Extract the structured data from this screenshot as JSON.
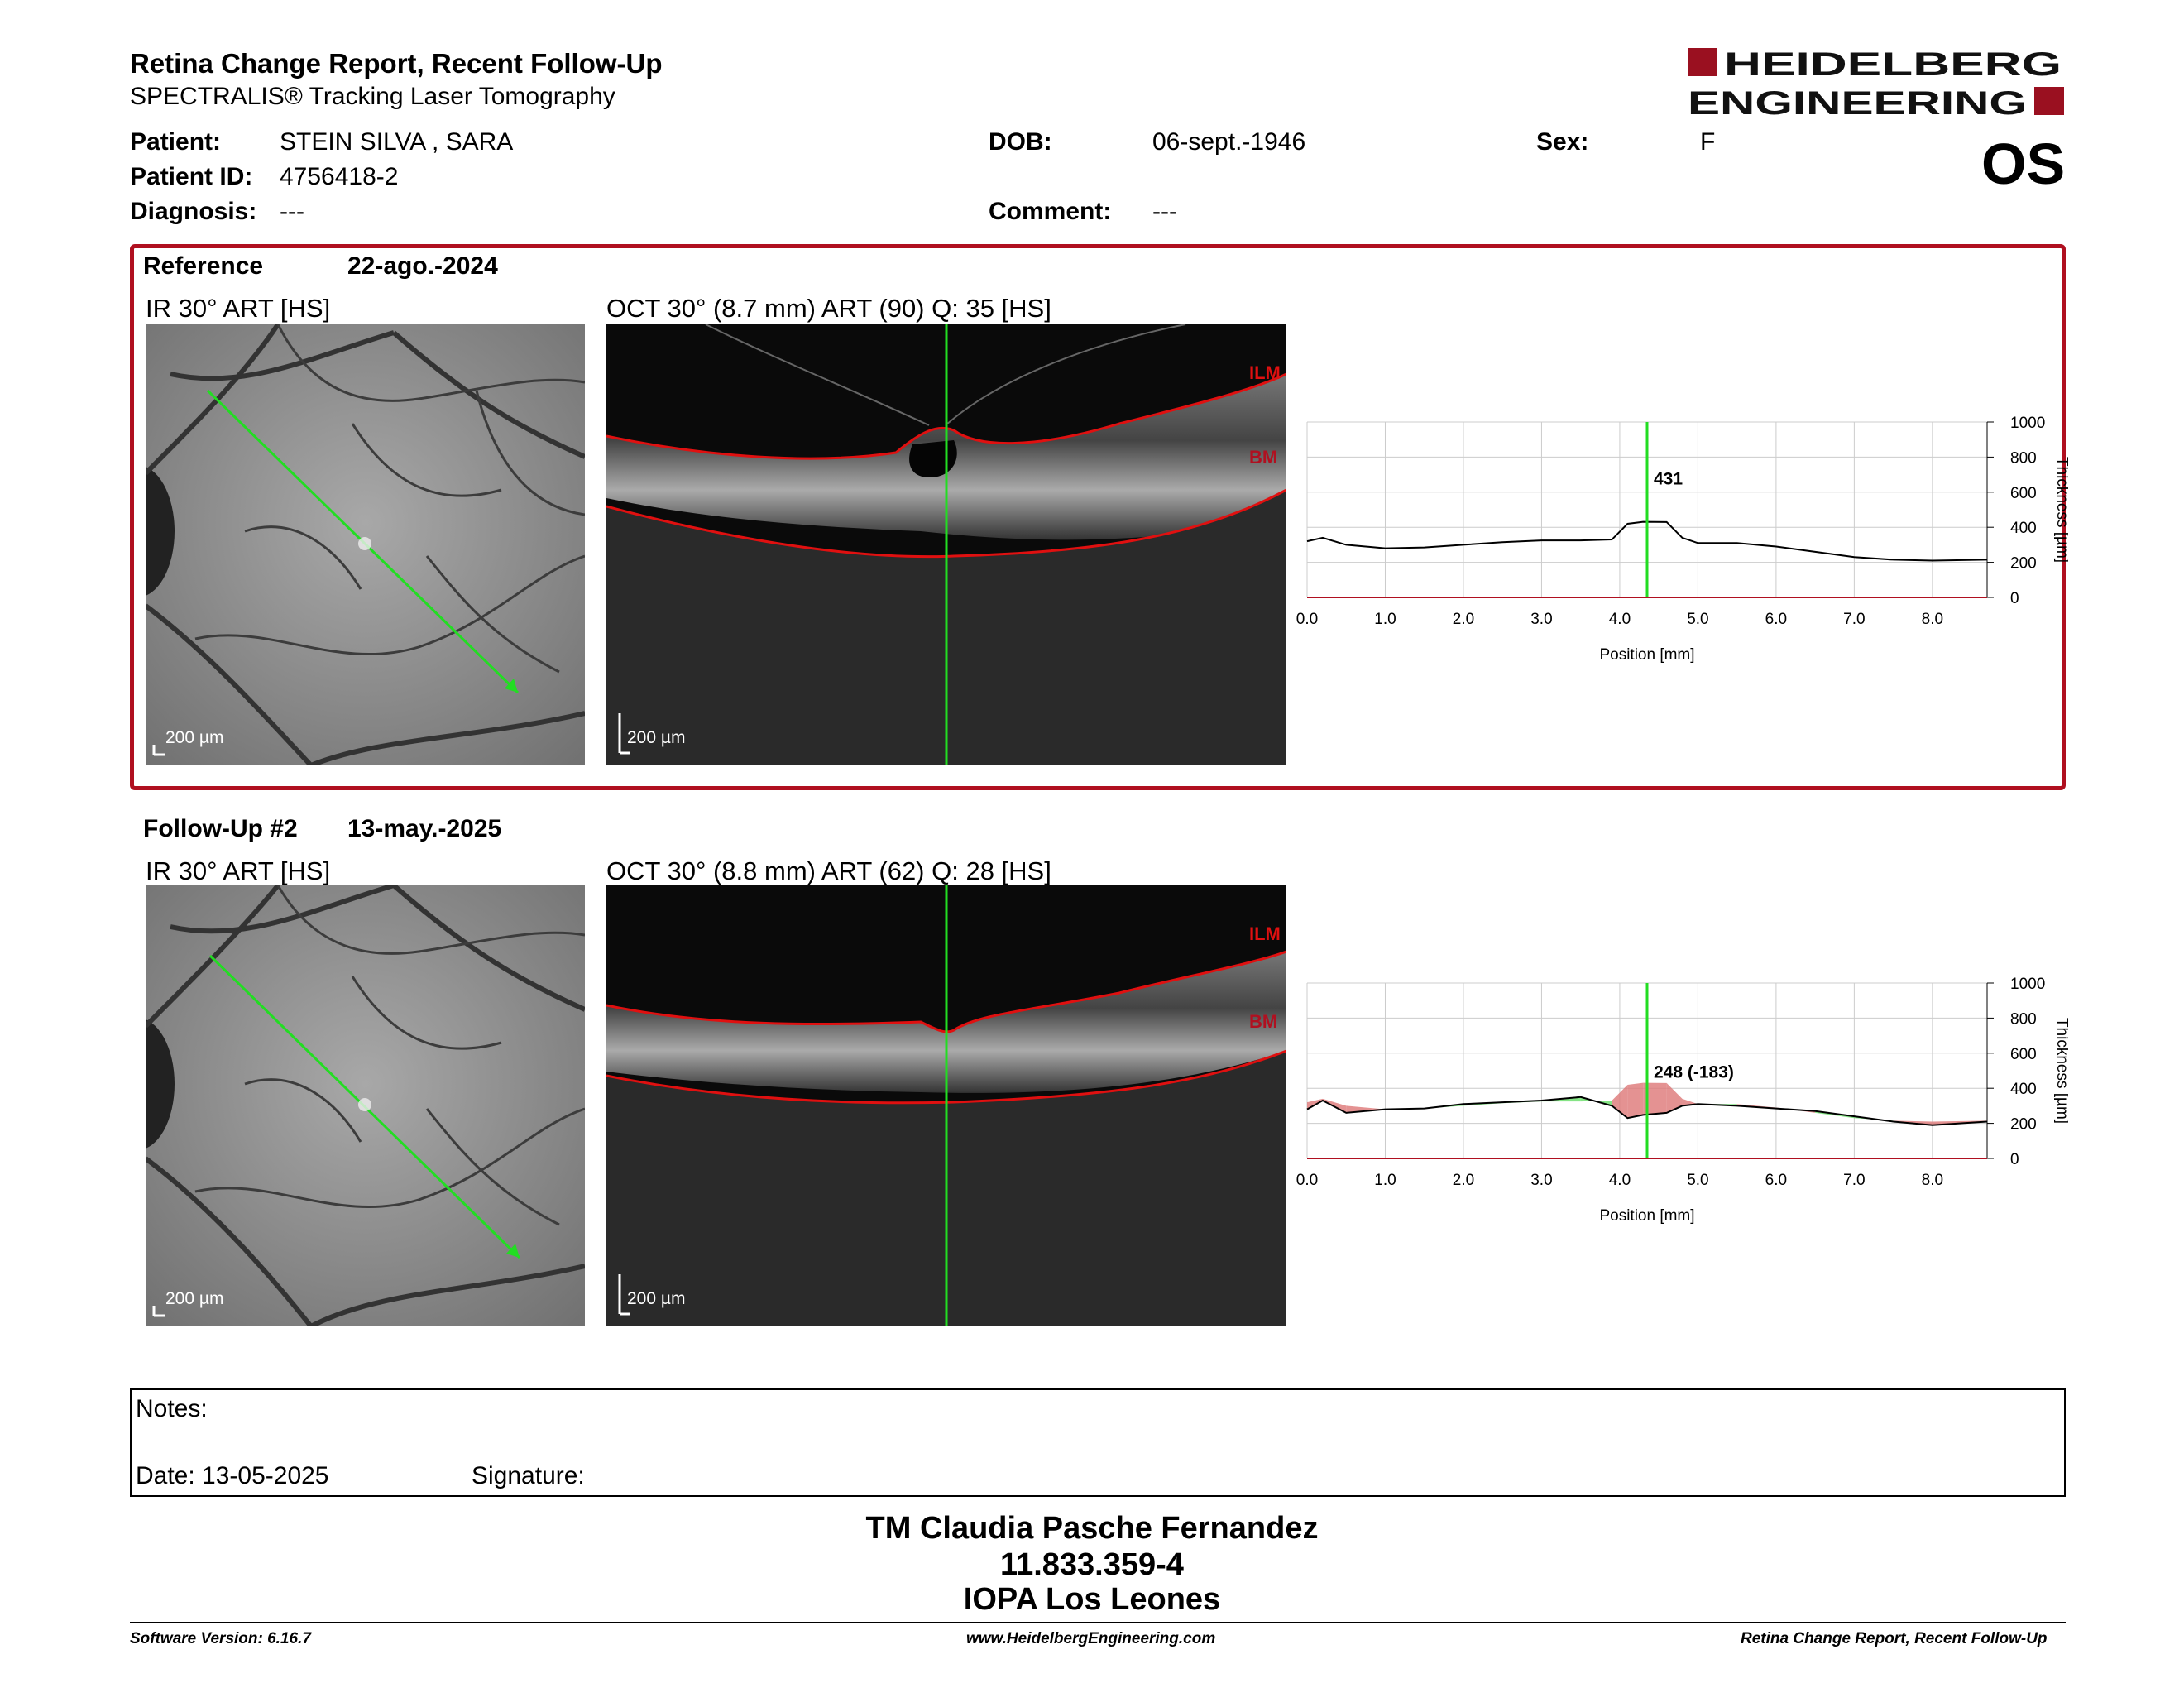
{
  "header": {
    "title": "Retina Change Report, Recent Follow-Up",
    "subtitle": "SPECTRALIS® Tracking Laser Tomography",
    "logo_line1": "HEIDELBERG",
    "logo_line2": "ENGINEERING",
    "eye": "OS"
  },
  "patient": {
    "name_label": "Patient:",
    "name": "STEIN SILVA , SARA",
    "id_label": "Patient ID:",
    "id": "4756418-2",
    "diagnosis_label": "Diagnosis:",
    "diagnosis": "---",
    "dob_label": "DOB:",
    "dob": "06-sept.-1946",
    "comment_label": "Comment:",
    "comment": "---",
    "sex_label": "Sex:",
    "sex": "F"
  },
  "reference": {
    "label": "Reference",
    "date": "22-ago.-2024",
    "ir_title": "IR 30° ART [HS]",
    "oct_title": "OCT 30° (8.7 mm) ART (90) Q: 35 [HS]",
    "scale": "200 µm",
    "ilm": "ILM",
    "bm": "BM",
    "marker_label": "431"
  },
  "followup": {
    "label": "Follow-Up #2",
    "date": "13-may.-2025",
    "ir_title": "IR 30° ART [HS]",
    "oct_title": "OCT 30° (8.8 mm) ART (62) Q: 28 [HS]",
    "scale": "200 µm",
    "ilm": "ILM",
    "bm": "BM",
    "marker_label": "248 (-183)"
  },
  "chart_data": [
    {
      "type": "line",
      "x_ticks": [
        "0.0",
        "1.0",
        "2.0",
        "3.0",
        "4.0",
        "5.0",
        "6.0",
        "7.0",
        "8.0"
      ],
      "y_ticks": [
        "0",
        "200",
        "400",
        "600",
        "800",
        "1000"
      ],
      "xlabel": "Position [mm]",
      "ylabel": "Thickness [µm]",
      "xlim": [
        0,
        8.7
      ],
      "ylim": [
        0,
        1000
      ],
      "marker_x": 4.35,
      "series": [
        {
          "x": [
            0.0,
            0.2,
            0.5,
            1.0,
            1.5,
            2.0,
            2.5,
            3.0,
            3.5,
            3.9,
            4.1,
            4.3,
            4.6,
            4.8,
            5.0,
            5.5,
            6.0,
            6.5,
            7.0,
            7.5,
            8.0,
            8.7
          ],
          "y": [
            320,
            340,
            300,
            280,
            285,
            300,
            315,
            325,
            325,
            330,
            420,
            431,
            430,
            340,
            310,
            310,
            290,
            260,
            230,
            215,
            210,
            215
          ]
        }
      ],
      "marker_value": 431
    },
    {
      "type": "line",
      "x_ticks": [
        "0.0",
        "1.0",
        "2.0",
        "3.0",
        "4.0",
        "5.0",
        "6.0",
        "7.0",
        "8.0"
      ],
      "y_ticks": [
        "0",
        "200",
        "400",
        "600",
        "800",
        "1000"
      ],
      "xlabel": "Position [mm]",
      "ylabel": "Thickness [µm]",
      "xlim": [
        0,
        8.7
      ],
      "ylim": [
        0,
        1000
      ],
      "marker_x": 4.35,
      "series": [
        {
          "x": [
            0.0,
            0.2,
            0.5,
            1.0,
            1.5,
            2.0,
            2.5,
            3.0,
            3.5,
            3.9,
            4.1,
            4.3,
            4.6,
            4.8,
            5.0,
            5.5,
            6.0,
            6.5,
            7.0,
            7.5,
            8.0,
            8.7
          ],
          "y": [
            280,
            330,
            260,
            280,
            285,
            310,
            320,
            330,
            350,
            300,
            230,
            248,
            260,
            300,
            310,
            300,
            285,
            270,
            240,
            210,
            190,
            210
          ]
        }
      ],
      "marker_value": 248,
      "change": -183
    }
  ],
  "notes": {
    "notes_label": "Notes:",
    "date_label": "Date: 13-05-2025",
    "signature_label": "Signature:"
  },
  "signature_block": {
    "name": "TM Claudia Pasche Fernandez",
    "id": "11.833.359-4",
    "org": "IOPA Los Leones"
  },
  "footer": {
    "version": "Software Version: 6.16.7",
    "url": "www.HeidelbergEngineering.com",
    "report": "Retina Change Report, Recent Follow-Up"
  },
  "colors": {
    "accent_red": "#b01020",
    "ilm_red": "#e01010",
    "marker_green": "#22dd22",
    "thickness_up": "#66dd66",
    "thickness_down": "#dd7777"
  }
}
